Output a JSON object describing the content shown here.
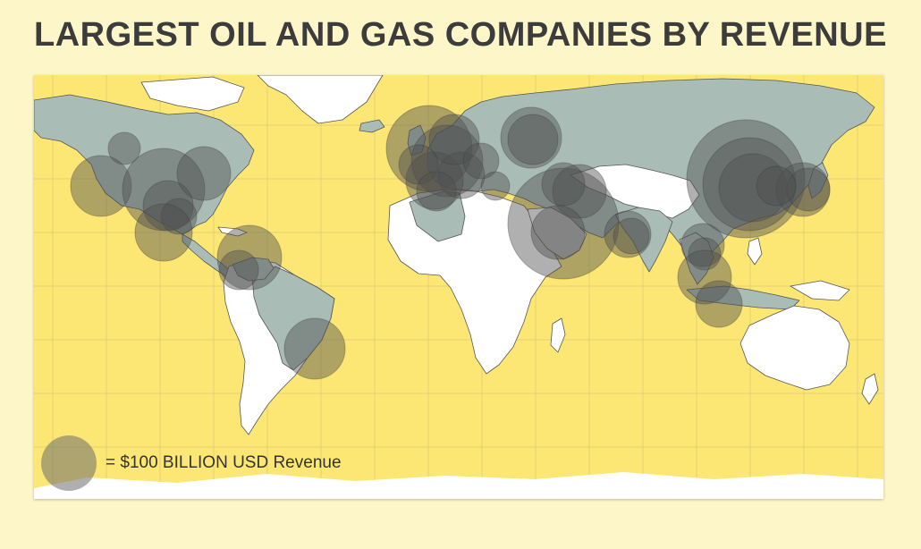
{
  "title": "LARGEST OIL AND GAS COMPANIES BY REVENUE",
  "legend": {
    "label": "= $100 BILLION USD Revenue",
    "circle_revenue_busd": 100
  },
  "colors": {
    "background": "#fdf6c8",
    "ocean": "#fde774",
    "land_with_companies": "#a9bdb6",
    "land_other": "#ffffff",
    "bubble": "#6e6e6e",
    "title": "#3c3c3c"
  }
}
